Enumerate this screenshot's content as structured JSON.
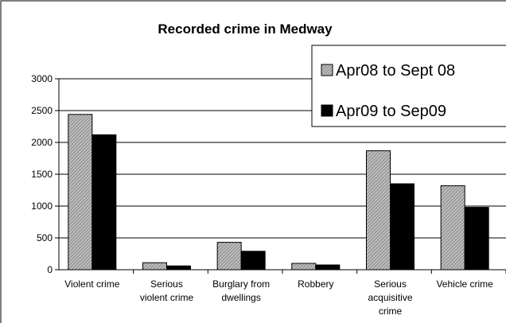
{
  "chart_data": {
    "type": "bar",
    "title": "Recorded crime in Medway",
    "xlabel": "",
    "ylabel": "",
    "ylim": [
      0,
      3000
    ],
    "yticks": [
      0,
      500,
      1000,
      1500,
      2000,
      2500,
      3000
    ],
    "grid": true,
    "legend_position": "top-right",
    "categories": [
      [
        "Violent crime"
      ],
      [
        "Serious",
        "violent crime"
      ],
      [
        "Burglary from",
        "dwellings"
      ],
      [
        "Robbery"
      ],
      [
        "Serious",
        "acquisitive",
        "crime"
      ],
      [
        "Vehicle crime"
      ]
    ],
    "series": [
      {
        "name": "Apr08 to Sept 08",
        "color": "#a8a8a8",
        "pattern": "hatched",
        "values": [
          2440,
          110,
          430,
          100,
          1870,
          1320
        ]
      },
      {
        "name": "Apr09 to Sep09",
        "color": "#000000",
        "pattern": "solid",
        "values": [
          2120,
          60,
          290,
          75,
          1350,
          980
        ]
      }
    ]
  }
}
